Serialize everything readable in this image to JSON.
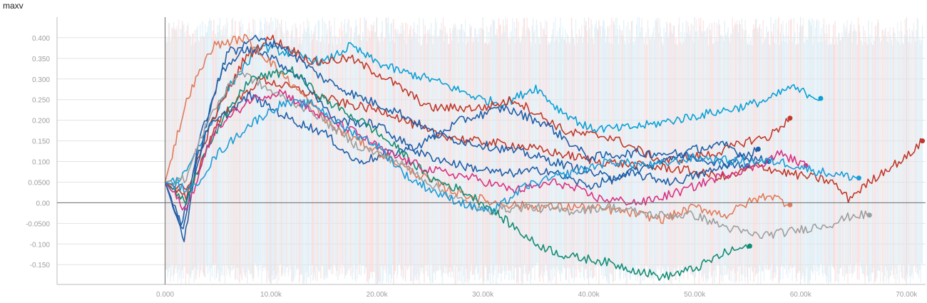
{
  "title": "maxv",
  "chart_data": {
    "type": "line",
    "title": "maxv",
    "xlabel": "",
    "ylabel": "",
    "xlim": [
      -10200,
      71800
    ],
    "ylim": [
      -0.198,
      0.45
    ],
    "x_ticks": [
      0,
      10000,
      20000,
      30000,
      40000,
      50000,
      60000,
      70000
    ],
    "x_tick_labels": [
      "0.000",
      "10.00k",
      "20.00k",
      "30.00k",
      "40.00k",
      "50.00k",
      "60.00k",
      "70.00k"
    ],
    "y_ticks": [
      0.4,
      0.35,
      0.3,
      0.25,
      0.2,
      0.15,
      0.1,
      0.05,
      0.0,
      -0.05,
      -0.1,
      -0.15
    ],
    "y_tick_labels": [
      "0.400",
      "0.350",
      "0.300",
      "0.250",
      "0.200",
      "0.150",
      "0.100",
      "0.0500",
      "0.00",
      "-0.0500",
      "-0.100",
      "-0.150"
    ],
    "grid": true,
    "legend": "none",
    "series": [
      {
        "color": "#0aa0d5",
        "x": [
          0,
          1500,
          3500,
          6000,
          9000,
          12000,
          15000,
          17500,
          20000,
          22000,
          25000,
          28000,
          30000,
          32000,
          35000,
          37000,
          40000,
          43000,
          46000,
          50000,
          54000,
          57000,
          59000,
          61900
        ],
        "y": [
          0.05,
          0.06,
          0.15,
          0.28,
          0.38,
          0.36,
          0.34,
          0.38,
          0.34,
          0.32,
          0.3,
          0.27,
          0.25,
          0.24,
          0.28,
          0.23,
          0.18,
          0.18,
          0.19,
          0.21,
          0.23,
          0.25,
          0.28,
          0.253
        ]
      },
      {
        "color": "#c0392b",
        "x": [
          0,
          2000,
          4500,
          7500,
          10000,
          14000,
          17500,
          21000,
          25000,
          30000,
          33000,
          38000,
          42000,
          47000,
          52000,
          55000,
          57000,
          59000
        ],
        "y": [
          0.05,
          0.03,
          0.2,
          0.35,
          0.4,
          0.34,
          0.35,
          0.3,
          0.23,
          0.23,
          0.25,
          0.17,
          0.16,
          0.1,
          0.12,
          0.15,
          0.16,
          0.205
        ]
      },
      {
        "color": "#c0392b",
        "x": [
          0,
          2000,
          5000,
          9000,
          13000,
          17000,
          21000,
          25000,
          29000,
          33000,
          37000,
          41000,
          45000,
          49000,
          53000,
          56000,
          59000,
          61500,
          63000,
          64500,
          66000,
          68000,
          70000,
          71500
        ],
        "y": [
          0.05,
          0.01,
          0.2,
          0.3,
          0.27,
          0.24,
          0.22,
          0.17,
          0.15,
          0.14,
          0.12,
          0.1,
          0.09,
          0.08,
          0.06,
          0.09,
          0.07,
          0.06,
          0.05,
          0.01,
          0.04,
          0.08,
          0.11,
          0.15
        ]
      },
      {
        "color": "#1f5fa8",
        "x": [
          0,
          1800,
          3000,
          5000,
          8000,
          11000,
          15000,
          18000,
          22000,
          26000,
          30000,
          34000,
          38000,
          42000,
          46000,
          50000,
          53000,
          55000,
          57000
        ],
        "y": [
          0.05,
          -0.09,
          0.1,
          0.3,
          0.4,
          0.38,
          0.3,
          0.26,
          0.22,
          0.16,
          0.14,
          0.12,
          0.09,
          0.06,
          0.09,
          0.13,
          0.14,
          0.11,
          0.1
        ]
      },
      {
        "color": "#1f5fa8",
        "x": [
          0,
          1500,
          4000,
          8000,
          12000,
          15000,
          18000,
          20000,
          24000,
          28000,
          32000,
          36000,
          40000,
          44000,
          48000,
          52000,
          55000
        ],
        "y": [
          0.05,
          -0.05,
          0.18,
          0.26,
          0.2,
          0.17,
          0.1,
          0.11,
          0.14,
          0.2,
          0.23,
          0.19,
          0.11,
          0.12,
          0.12,
          0.1,
          0.09
        ]
      },
      {
        "color": "#1f5fa8",
        "x": [
          0,
          1700,
          3200,
          6000,
          9000,
          13000,
          16000,
          20000,
          24000,
          28000,
          32000,
          36000,
          40000,
          44000,
          48000,
          52000,
          56000
        ],
        "y": [
          0.05,
          -0.07,
          0.15,
          0.37,
          0.37,
          0.3,
          0.2,
          0.19,
          0.12,
          0.09,
          0.07,
          0.08,
          0.04,
          0.07,
          0.05,
          0.08,
          0.13
        ]
      },
      {
        "color": "#e07b5a",
        "x": [
          0,
          1000,
          2200,
          4500,
          7500,
          10000,
          13000,
          16000,
          19000,
          23000,
          27000,
          31000,
          35000,
          39000,
          43000,
          47000,
          50000,
          53000,
          55000,
          57000,
          59000
        ],
        "y": [
          0.05,
          0.15,
          0.26,
          0.38,
          0.4,
          0.34,
          0.26,
          0.18,
          0.14,
          0.08,
          0.03,
          0.0,
          -0.01,
          -0.01,
          -0.02,
          -0.04,
          -0.01,
          -0.03,
          0.0,
          0.02,
          -0.005
        ]
      },
      {
        "color": "#9e9e9e",
        "x": [
          0,
          2000,
          4000,
          7000,
          10000,
          14000,
          18000,
          22000,
          26000,
          30000,
          34000,
          38000,
          42000,
          46000,
          50000,
          53000,
          56000,
          59000,
          61000,
          63000,
          65000,
          66500
        ],
        "y": [
          0.05,
          0.06,
          0.2,
          0.32,
          0.27,
          0.22,
          0.14,
          0.1,
          0.03,
          -0.02,
          -0.01,
          -0.02,
          -0.01,
          -0.03,
          -0.03,
          -0.06,
          -0.08,
          -0.07,
          -0.06,
          -0.05,
          -0.03,
          -0.03
        ]
      },
      {
        "color": "#138d75",
        "x": [
          0,
          2000,
          4000,
          8000,
          12000,
          15000,
          19000,
          22000,
          25000,
          28000,
          30000,
          33000,
          35000,
          38000,
          41000,
          44000,
          47000,
          50000,
          53000,
          55200
        ],
        "y": [
          0.05,
          0.0,
          0.14,
          0.3,
          0.32,
          0.25,
          0.19,
          0.13,
          0.06,
          0.03,
          0.0,
          -0.06,
          -0.1,
          -0.13,
          -0.14,
          -0.16,
          -0.18,
          -0.16,
          -0.12,
          -0.105
        ]
      },
      {
        "color": "#d63384",
        "x": [
          0,
          2000,
          4500,
          8000,
          11000,
          14000,
          18000,
          21000,
          25000,
          29000,
          33000,
          37000,
          41000,
          45000,
          49000,
          53000,
          56000,
          58000,
          60500
        ],
        "y": [
          0.05,
          -0.02,
          0.17,
          0.25,
          0.27,
          0.22,
          0.17,
          0.12,
          0.08,
          0.06,
          0.03,
          0.05,
          0.01,
          0.0,
          0.03,
          0.07,
          0.09,
          0.12,
          0.09
        ]
      },
      {
        "color": "#1b9cd8",
        "x": [
          0,
          2500,
          5000,
          8000,
          11000,
          14000,
          17000,
          20000,
          23000,
          26000,
          29000,
          31000,
          34000,
          38000,
          42000,
          46000,
          50000,
          54000,
          58000,
          61000,
          63000,
          65500
        ],
        "y": [
          0.05,
          0.03,
          0.12,
          0.19,
          0.24,
          0.24,
          0.18,
          0.14,
          0.06,
          0.02,
          -0.01,
          -0.02,
          0.04,
          0.07,
          0.1,
          0.09,
          0.11,
          0.1,
          0.1,
          0.08,
          0.07,
          0.06
        ]
      }
    ]
  }
}
